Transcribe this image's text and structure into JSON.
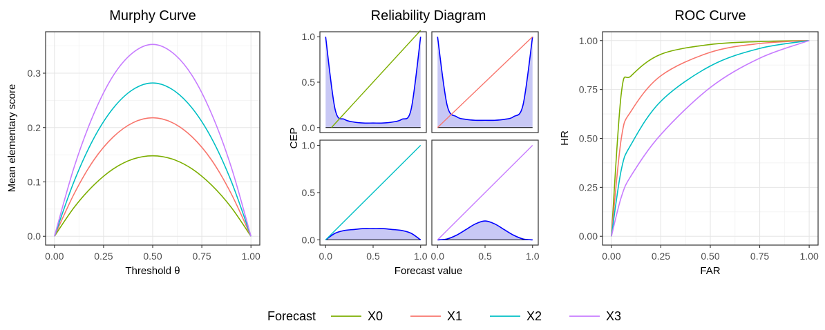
{
  "colors": {
    "X0": "#7CAE00",
    "X1": "#F8766D",
    "X2": "#00BFC4",
    "X3": "#C77CFF",
    "cep": "#0000FF",
    "hist_fill": "#C8C8F5"
  },
  "legend": {
    "title": "Forecast",
    "items": [
      "X0",
      "X1",
      "X2",
      "X3"
    ]
  },
  "chart_data": [
    {
      "type": "line",
      "title": "Murphy Curve",
      "xlabel": "Threshold θ",
      "ylabel": "Mean elementary score",
      "xlim": [
        0,
        1
      ],
      "ylim": [
        0,
        0.36
      ],
      "xticks": [
        "0.00",
        "0.25",
        "0.50",
        "0.75",
        "1.00"
      ],
      "yticks": [
        "0.0",
        "0.1",
        "0.2",
        "0.3"
      ],
      "grid": true,
      "series": [
        {
          "name": "X0",
          "x": [
            0,
            0.1,
            0.2,
            0.3,
            0.4,
            0.5,
            0.6,
            0.7,
            0.8,
            0.9,
            1.0
          ],
          "values": [
            0,
            0.053,
            0.094,
            0.124,
            0.142,
            0.148,
            0.142,
            0.124,
            0.094,
            0.053,
            0
          ]
        },
        {
          "name": "X1",
          "x": [
            0,
            0.1,
            0.2,
            0.3,
            0.4,
            0.5,
            0.6,
            0.7,
            0.8,
            0.9,
            1.0
          ],
          "values": [
            0,
            0.078,
            0.14,
            0.183,
            0.209,
            0.218,
            0.209,
            0.183,
            0.14,
            0.078,
            0
          ]
        },
        {
          "name": "X2",
          "x": [
            0,
            0.1,
            0.2,
            0.3,
            0.4,
            0.5,
            0.6,
            0.7,
            0.8,
            0.9,
            1.0
          ],
          "values": [
            0,
            0.101,
            0.18,
            0.236,
            0.27,
            0.282,
            0.27,
            0.236,
            0.18,
            0.101,
            0
          ]
        },
        {
          "name": "X3",
          "x": [
            0,
            0.1,
            0.2,
            0.3,
            0.4,
            0.5,
            0.6,
            0.7,
            0.8,
            0.9,
            1.0
          ],
          "values": [
            0,
            0.127,
            0.225,
            0.296,
            0.338,
            0.353,
            0.338,
            0.296,
            0.225,
            0.127,
            0
          ]
        }
      ]
    },
    {
      "type": "line",
      "title": "Reliability Diagram",
      "xlabel": "Forecast value",
      "ylabel": "CEP",
      "xlim": [
        0,
        1
      ],
      "ylim": [
        0,
        1
      ],
      "xticks": [
        "0.0",
        "0.5",
        "1.0"
      ],
      "yticks": [
        "0.0",
        "0.5",
        "1.0"
      ],
      "panels": [
        {
          "forecast": "X0",
          "slope": 1.14,
          "intercept": -0.07,
          "hist": [
            1.0,
            0.2,
            0.09,
            0.06,
            0.05,
            0.05,
            0.05,
            0.06,
            0.09,
            0.2,
            1.0
          ]
        },
        {
          "forecast": "X1",
          "slope": 1.0,
          "intercept": 0.0,
          "hist": [
            1.0,
            0.25,
            0.12,
            0.09,
            0.08,
            0.08,
            0.08,
            0.09,
            0.12,
            0.25,
            1.0
          ]
        },
        {
          "forecast": "X2",
          "slope": 1.0,
          "intercept": 0.0,
          "hist": [
            0.0,
            0.07,
            0.1,
            0.11,
            0.12,
            0.12,
            0.12,
            0.11,
            0.1,
            0.07,
            0.0
          ]
        },
        {
          "forecast": "X3",
          "slope": 1.0,
          "intercept": 0.0,
          "hist": [
            0.0,
            0.01,
            0.05,
            0.11,
            0.17,
            0.2,
            0.17,
            0.11,
            0.05,
            0.01,
            0.0
          ]
        }
      ]
    },
    {
      "type": "line",
      "title": "ROC Curve",
      "xlabel": "FAR",
      "ylabel": "HR",
      "xlim": [
        0,
        1
      ],
      "ylim": [
        0,
        1
      ],
      "xticks": [
        "0.00",
        "0.25",
        "0.50",
        "0.75",
        "1.00"
      ],
      "yticks": [
        "0.00",
        "0.25",
        "0.50",
        "0.75",
        "1.00"
      ],
      "grid": true,
      "series": [
        {
          "name": "X0",
          "x": [
            0,
            0.05,
            0.1,
            0.25,
            0.5,
            0.75,
            1.0
          ],
          "values": [
            0,
            0.73,
            0.82,
            0.93,
            0.98,
            0.995,
            1.0
          ]
        },
        {
          "name": "X1",
          "x": [
            0,
            0.05,
            0.1,
            0.25,
            0.5,
            0.75,
            1.0
          ],
          "values": [
            0,
            0.5,
            0.64,
            0.82,
            0.94,
            0.985,
            1.0
          ]
        },
        {
          "name": "X2",
          "x": [
            0,
            0.05,
            0.1,
            0.25,
            0.5,
            0.75,
            1.0
          ],
          "values": [
            0,
            0.34,
            0.47,
            0.69,
            0.87,
            0.96,
            1.0
          ]
        },
        {
          "name": "X3",
          "x": [
            0,
            0.05,
            0.1,
            0.25,
            0.5,
            0.75,
            1.0
          ],
          "values": [
            0,
            0.2,
            0.31,
            0.52,
            0.76,
            0.91,
            1.0
          ]
        }
      ]
    }
  ]
}
